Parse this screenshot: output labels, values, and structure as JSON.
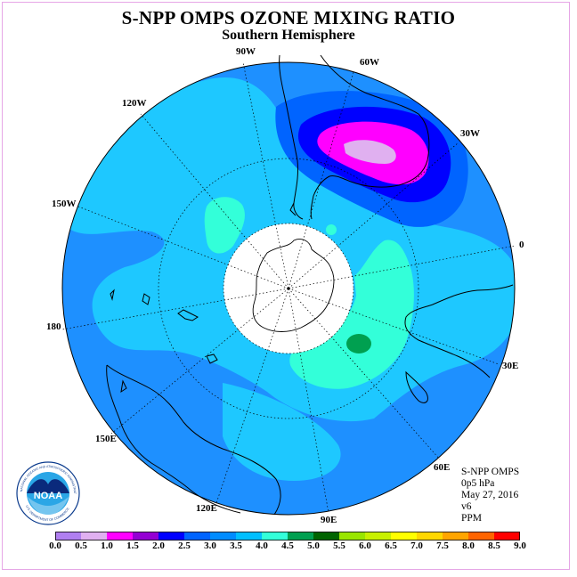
{
  "title": "S-NPP OMPS OZONE MIXING RATIO",
  "subtitle": "Southern Hemisphere",
  "longitude_labels": {
    "w90": "90W",
    "w60": "60W",
    "w30": "30W",
    "e0": "0",
    "w120": "120W",
    "w150": "150W",
    "l180": "180",
    "e30": "30E",
    "e60": "60E",
    "e90": "90E",
    "e120": "120E",
    "e150": "150E"
  },
  "info": {
    "instrument": "S-NPP OMPS",
    "level": "0p5 hPa",
    "date": "May 27, 2016",
    "version": "v6",
    "units": "PPM"
  },
  "logo": {
    "text": "NOAA",
    "ring_top": "NATIONAL OCEANIC AND ATMOSPHERIC ADMINISTRATION",
    "ring_bottom": "U.S. DEPARTMENT OF COMMERCE"
  },
  "colorbar": {
    "labels": [
      "0.0",
      "0.5",
      "1.0",
      "1.5",
      "2.0",
      "2.5",
      "3.0",
      "3.5",
      "4.0",
      "4.5",
      "5.0",
      "5.5",
      "6.0",
      "6.5",
      "7.0",
      "7.5",
      "8.0",
      "8.5",
      "9.0"
    ],
    "colors": [
      "#b07ff0",
      "#e0b0f0",
      "#ff00ff",
      "#9400d3",
      "#0000ff",
      "#0064ff",
      "#008cff",
      "#00bfff",
      "#33ffd9",
      "#00a050",
      "#006400",
      "#99e600",
      "#c8f000",
      "#ffff00",
      "#ffd700",
      "#ffa500",
      "#ff6400",
      "#ff0000",
      "#8b4513"
    ]
  },
  "map_colors": {
    "bg_2_5": "#1e90ff",
    "level_3_0": "#1ec8ff",
    "level_3_5": "#33ffd9",
    "level_4_0": "#00a050",
    "level_2_0": "#0064ff",
    "level_1_5": "#0000ff",
    "level_1_0": "#ff00ff",
    "level_0_5": "#e0b0f0"
  }
}
